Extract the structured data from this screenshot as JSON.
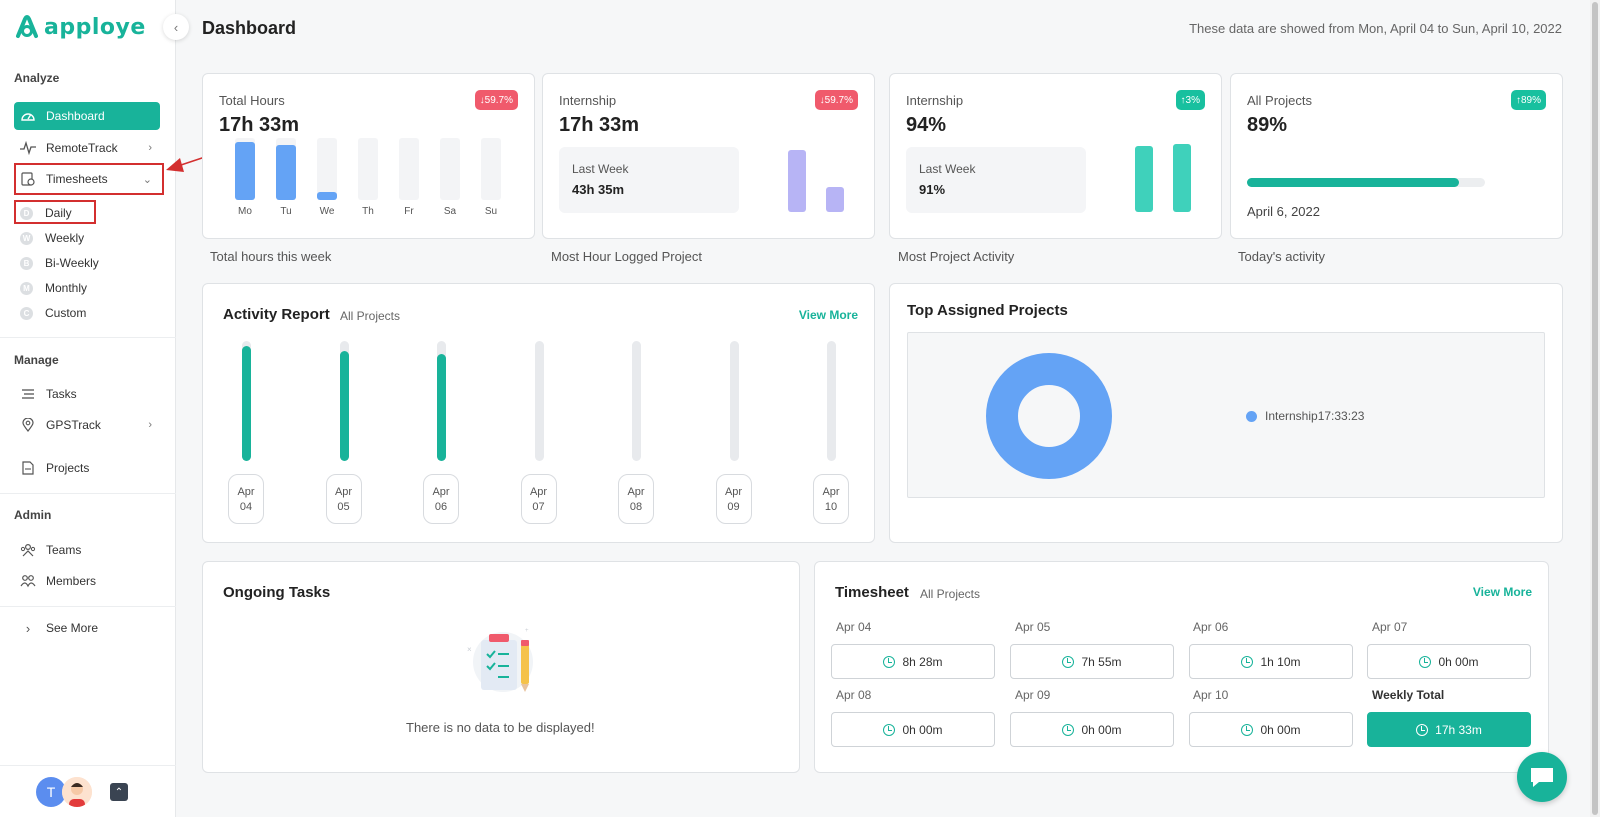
{
  "brand": {
    "name": "apploye",
    "color": "#18b39a"
  },
  "sidebar": {
    "sections": {
      "analyze": "Analyze",
      "manage": "Manage",
      "admin": "Admin"
    },
    "analyze_items": [
      {
        "label": "Dashboard",
        "icon": "dashboard-icon",
        "active": true
      },
      {
        "label": "RemoteTrack",
        "icon": "pulse-icon"
      },
      {
        "label": "Timesheets",
        "icon": "timesheet-icon"
      }
    ],
    "timesheet_sub": [
      {
        "letter": "D",
        "label": "Daily"
      },
      {
        "letter": "W",
        "label": "Weekly"
      },
      {
        "letter": "B",
        "label": "Bi-Weekly"
      },
      {
        "letter": "M",
        "label": "Monthly"
      },
      {
        "letter": "C",
        "label": "Custom"
      }
    ],
    "manage_items": [
      {
        "label": "Tasks",
        "icon": "tasks-icon"
      },
      {
        "label": "GPSTrack",
        "icon": "location-icon"
      },
      {
        "label": "Projects",
        "icon": "projects-icon"
      }
    ],
    "admin_items": [
      {
        "label": "Teams",
        "icon": "teams-icon"
      },
      {
        "label": "Members",
        "icon": "members-icon"
      }
    ],
    "see_more": "See More",
    "avatar_initial": "T"
  },
  "header": {
    "title": "Dashboard",
    "date_range": "These data are showed from Mon, April 04 to Sun, April 10, 2022"
  },
  "cards": {
    "total_hours": {
      "label": "Total Hours",
      "value": "17h 33m",
      "badge": "↓59.7%",
      "caption": "Total hours this week",
      "days": [
        "Mo",
        "Tu",
        "We",
        "Th",
        "Fr",
        "Sa",
        "Su"
      ],
      "day_hours": [
        8.47,
        7.92,
        1.17,
        0,
        0,
        0,
        0
      ]
    },
    "most_hour": {
      "label": "Internship",
      "value": "17h 33m",
      "badge": "↓59.7%",
      "last_week_label": "Last Week",
      "last_week_value": "43h 35m",
      "caption": "Most Hour Logged Project",
      "compare": [
        43.58,
        17.55
      ]
    },
    "most_activity": {
      "label": "Internship",
      "value": "94%",
      "badge": "↑3%",
      "last_week_label": "Last Week",
      "last_week_value": "91%",
      "caption": "Most Project Activity",
      "compare": [
        91,
        94
      ]
    },
    "today_activity": {
      "label": "All Projects",
      "value": "89%",
      "badge": "↑89%",
      "progress": 0.89,
      "date": "April 6, 2022",
      "caption": "Today's activity"
    }
  },
  "activity_report": {
    "title": "Activity Report",
    "subtitle": "All Projects",
    "view_more": "View More",
    "days": [
      {
        "month": "Apr",
        "day": "04",
        "level": 0.96
      },
      {
        "month": "Apr",
        "day": "05",
        "level": 0.92
      },
      {
        "month": "Apr",
        "day": "06",
        "level": 0.89
      },
      {
        "month": "Apr",
        "day": "07",
        "level": 0
      },
      {
        "month": "Apr",
        "day": "08",
        "level": 0
      },
      {
        "month": "Apr",
        "day": "09",
        "level": 0
      },
      {
        "month": "Apr",
        "day": "10",
        "level": 0
      }
    ]
  },
  "top_projects": {
    "title": "Top Assigned Projects",
    "legend": "Internship17:33:23",
    "color": "#64a3f5"
  },
  "ongoing_tasks": {
    "title": "Ongoing Tasks",
    "empty_text": "There is no data to be displayed!"
  },
  "timesheet": {
    "title": "Timesheet",
    "subtitle": "All Projects",
    "view_more": "View More",
    "days": [
      {
        "date": "Apr 04",
        "hours": "8h 28m"
      },
      {
        "date": "Apr 05",
        "hours": "7h 55m"
      },
      {
        "date": "Apr 06",
        "hours": "1h 10m"
      },
      {
        "date": "Apr 07",
        "hours": "0h 00m"
      },
      {
        "date": "Apr 08",
        "hours": "0h 00m"
      },
      {
        "date": "Apr 09",
        "hours": "0h 00m"
      },
      {
        "date": "Apr 10",
        "hours": "0h 00m"
      }
    ],
    "weekly_label": "Weekly Total",
    "weekly_total": "17h 33m"
  }
}
